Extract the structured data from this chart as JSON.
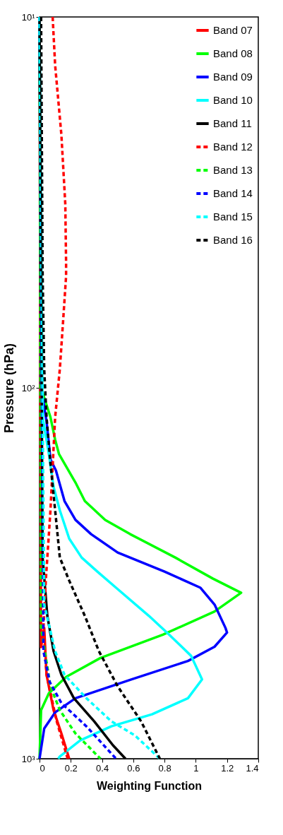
{
  "chart_data": {
    "type": "line",
    "xlabel": "Weighting Function",
    "ylabel": "Pressure (hPa)",
    "log": "y",
    "legend": "top right",
    "xlim": [
      0,
      1.4
    ],
    "xticks": [
      0,
      0.2,
      0.4,
      0.6,
      0.8,
      1,
      1.2,
      1.4
    ],
    "ylim": [
      1000,
      10
    ],
    "yticks": [
      {
        "value": 10,
        "label": "10¹"
      },
      {
        "value": 100,
        "label": "10²"
      },
      {
        "value": 1000,
        "label": "10³"
      }
    ],
    "series": [
      {
        "name": "Band 07",
        "color": "#ff0000",
        "line_style": "solid",
        "x": [
          0,
          0.01,
          0.03,
          0.045,
          0.09,
          0.14,
          0.19
        ],
        "values": [
          10,
          500,
          444,
          594,
          740,
          855,
          1000
        ]
      },
      {
        "name": "Band 08",
        "color": "#00ff00",
        "line_style": "solid",
        "x": [
          0,
          0.01,
          0.07,
          0.1,
          0.125,
          0.23,
          0.29,
          0.42,
          0.58,
          0.87,
          1.11,
          1.29,
          1.12,
          0.79,
          0.39,
          0.17,
          0.06,
          0.01,
          0
        ],
        "values": [
          10,
          100,
          120,
          138,
          151,
          180,
          202,
          227,
          248,
          287,
          327,
          357,
          401,
          463,
          535,
          602,
          666,
          740,
          1000
        ]
      },
      {
        "name": "Band 09",
        "color": "#0000ff",
        "line_style": "solid",
        "x": [
          0,
          0.01,
          0.045,
          0.07,
          0.105,
          0.16,
          0.23,
          0.33,
          0.5,
          0.8,
          1.03,
          1.12,
          1.19,
          1.2,
          1.12,
          0.95,
          0.59,
          0.23,
          0.1,
          0.03,
          0
        ],
        "values": [
          10,
          100,
          123,
          156,
          167,
          202,
          227,
          248,
          278,
          313,
          346,
          384,
          444,
          457,
          499,
          545,
          611,
          687,
          750,
          829,
          1000
        ]
      },
      {
        "name": "Band 10",
        "color": "#00ffff",
        "line_style": "solid",
        "x": [
          0,
          0.02,
          0.06,
          0.09,
          0.13,
          0.19,
          0.27,
          0.37,
          0.49,
          0.7,
          0.83,
          0.97,
          1.04,
          0.95,
          0.72,
          0.46,
          0.26,
          0.13,
          0.12
        ],
        "values": [
          10,
          120,
          151,
          185,
          214,
          255,
          287,
          313,
          346,
          412,
          463,
          528,
          611,
          687,
          759,
          818,
          893,
          986,
          1000
        ]
      },
      {
        "name": "Band 11",
        "color": "#000000",
        "line_style": "solid",
        "x": [
          0,
          0.02,
          0.05,
          0.09,
          0.14,
          0.22,
          0.35,
          0.47,
          0.55
        ],
        "values": [
          10,
          287,
          412,
          513,
          594,
          687,
          793,
          920,
          1000
        ]
      },
      {
        "name": "Band 12",
        "color": "#ff0000",
        "line_style": "dashed",
        "x": [
          0.084,
          0.1,
          0.14,
          0.165,
          0.17,
          0.17,
          0.15,
          0.13,
          0.1,
          0.085,
          0.07,
          0.05,
          0.04,
          0.025,
          0.045,
          0.11,
          0.18
        ],
        "values": [
          10,
          13.5,
          20.8,
          32,
          46,
          50,
          67,
          89,
          120,
          160,
          214,
          287,
          331,
          444,
          594,
          793,
          1000
        ]
      },
      {
        "name": "Band 13",
        "color": "#00ff00",
        "line_style": "dashed",
        "x": [
          0,
          0.01,
          0.07,
          0.13,
          0.23,
          0.39
        ],
        "values": [
          10,
          444,
          638,
          740,
          855,
          1000
        ]
      },
      {
        "name": "Band 14",
        "color": "#0000ff",
        "line_style": "dashed",
        "x": [
          0,
          0.025,
          0.065,
          0.14,
          0.3,
          0.49
        ],
        "values": [
          10,
          513,
          621,
          708,
          818,
          1000
        ]
      },
      {
        "name": "Band 15",
        "color": "#00ffff",
        "line_style": "dashed",
        "x": [
          0,
          0.03,
          0.1,
          0.16,
          0.3,
          0.46,
          0.61,
          0.77
        ],
        "values": [
          10,
          384,
          513,
          594,
          687,
          793,
          865,
          1000
        ]
      },
      {
        "name": "Band 16",
        "color": "#000000",
        "line_style": "dashed",
        "x": [
          0.01,
          0.02,
          0.03,
          0.045,
          0.07,
          0.1,
          0.13,
          0.19,
          0.29,
          0.38,
          0.5,
          0.65,
          0.77
        ],
        "values": [
          10,
          50,
          89,
          120,
          160,
          214,
          287,
          331,
          412,
          513,
          638,
          793,
          1000
        ]
      }
    ]
  }
}
